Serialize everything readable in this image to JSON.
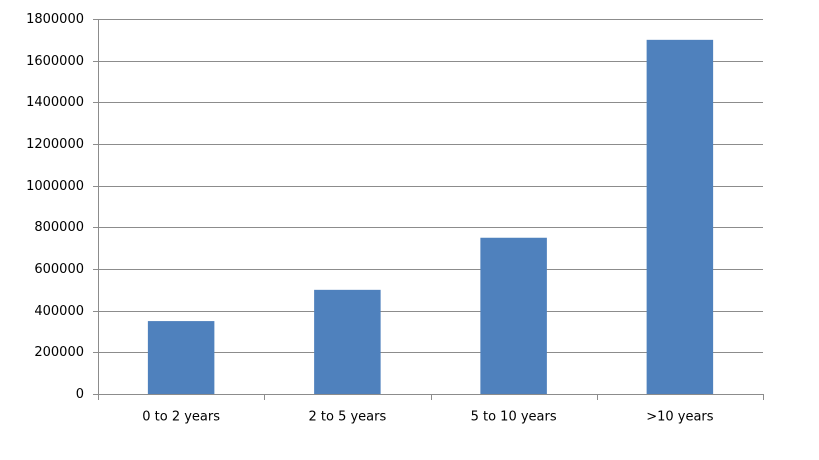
{
  "chart_data": {
    "type": "bar",
    "categories": [
      "0 to 2 years",
      "2 to 5 years",
      "5 to 10 years",
      ">10 years"
    ],
    "values": [
      350000,
      500000,
      750000,
      1700000
    ],
    "color": "#4f81bd",
    "ylim": [
      0,
      1800000
    ],
    "yticks": [
      0,
      200000,
      400000,
      600000,
      800000,
      1000000,
      1200000,
      1400000,
      1600000,
      1800000
    ],
    "grid": true
  }
}
